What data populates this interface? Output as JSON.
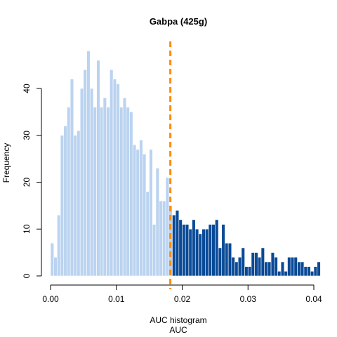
{
  "chart_data": {
    "type": "histogram",
    "title": "Gabpa (425g)",
    "xlabel": "AUC histogram",
    "xlabel2": "AUC",
    "ylabel": "Frequency",
    "xlim": [
      0.0,
      0.04
    ],
    "ylim": [
      0,
      48
    ],
    "xticks": [
      "0.00",
      "0.01",
      "0.02",
      "0.03",
      "0.04"
    ],
    "yticks": [
      "0",
      "10",
      "20",
      "30",
      "40"
    ],
    "bin_width": 0.0005,
    "bin_start": 0.0,
    "counts": [
      7,
      4,
      13,
      30,
      32,
      36,
      42,
      30,
      31,
      40,
      44,
      48,
      40,
      36,
      46,
      36,
      38,
      36,
      44,
      42,
      41,
      36,
      38,
      36,
      35,
      28,
      27,
      29,
      26,
      18,
      27,
      11,
      23,
      16,
      16,
      21,
      15,
      13,
      14,
      12,
      11,
      11,
      10,
      12,
      10,
      9,
      10,
      10,
      11,
      11,
      12,
      6,
      11,
      7,
      7,
      4,
      3,
      4,
      6,
      2,
      2,
      5,
      5,
      4,
      6,
      3,
      3,
      5,
      4,
      1,
      3,
      1,
      4,
      4,
      4,
      3,
      3,
      2,
      2,
      1,
      2,
      3
    ],
    "split_bin_index": 37,
    "threshold": 0.0182,
    "colors": {
      "low": "#bad3f0",
      "high": "#0a4a96",
      "threshold_line": "#ff8c00"
    }
  }
}
